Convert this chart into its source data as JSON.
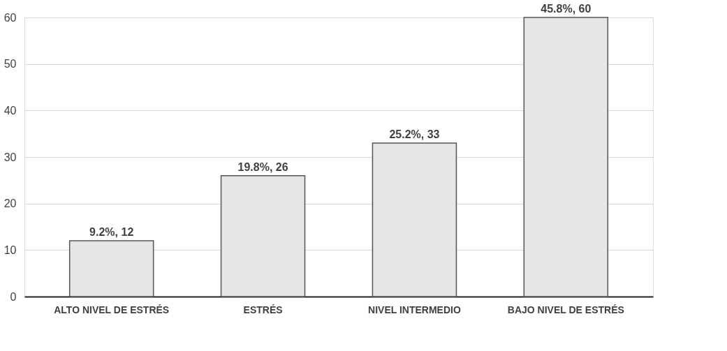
{
  "chart_data": {
    "type": "bar",
    "categories": [
      "ALTO NIVEL DE ESTRÉS",
      "ESTRÉS",
      "NIVEL INTERMEDIO",
      "BAJO NIVEL DE ESTRÉS"
    ],
    "values": [
      12,
      26,
      33,
      60
    ],
    "value_labels": [
      "9.2%, 12",
      "19.8%, 26",
      "25.2%, 33",
      "45.8%, 60"
    ],
    "color": "#e6e6e6",
    "ylim": [
      0,
      60
    ],
    "yticks": [
      0,
      10,
      20,
      30,
      40,
      50,
      60
    ],
    "grid": "y"
  }
}
